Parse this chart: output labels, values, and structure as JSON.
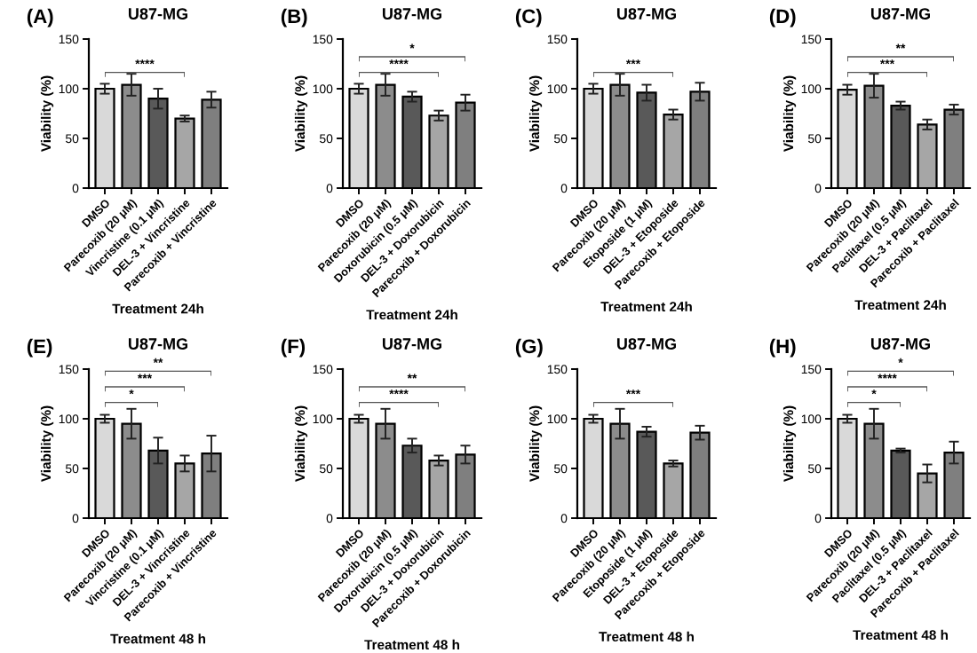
{
  "chart_data": [
    {
      "type": "bar",
      "title": "U87-MG",
      "xlabel": "Treatment 24h",
      "ylabel": "Viability (%)",
      "categories": [
        "DMSO",
        "Parecoxib (20 μM)",
        "Vincristine (0.1 μM)",
        "DEL-3 + Vincristine",
        "Parecoxib + Vincristine"
      ],
      "values": [
        100,
        104,
        90,
        70,
        89
      ],
      "errors": [
        5,
        11,
        10,
        3,
        8
      ],
      "colors": [
        "#d9d9d9",
        "#8c8c8c",
        "#595959",
        "#a6a6a6",
        "#7f7f7f"
      ],
      "ylim": [
        0,
        150
      ],
      "yticks": [
        0,
        50,
        100,
        150
      ],
      "grid": false,
      "annotations": [
        "(A)",
        "****"
      ]
    },
    {
      "type": "bar",
      "title": "U87-MG",
      "xlabel": "Treatment 24h",
      "ylabel": "Viability (%)",
      "categories": [
        "DMSO",
        "Parecoxib (20 μM)",
        "Doxorubicin (0.5 μM)",
        "DEL-3 + Doxorubicin",
        "Parecoxib + Doxorubicin"
      ],
      "values": [
        100,
        104,
        92,
        73,
        86
      ],
      "errors": [
        5,
        11,
        5,
        5,
        8
      ],
      "colors": [
        "#d9d9d9",
        "#8c8c8c",
        "#595959",
        "#a6a6a6",
        "#7f7f7f"
      ],
      "ylim": [
        0,
        150
      ],
      "yticks": [
        0,
        50,
        100,
        150
      ],
      "grid": false,
      "annotations": [
        "(B)",
        "*",
        "****"
      ]
    },
    {
      "type": "bar",
      "title": "U87-MG",
      "xlabel": "Treatment 24h",
      "ylabel": "Viability (%)",
      "categories": [
        "DMSO",
        "Parecoxib (20 μM)",
        "Etoposide (1 μM)",
        "DEL-3 + Etoposide",
        "Parecoxib + Etoposide"
      ],
      "values": [
        100,
        104,
        96,
        74,
        97
      ],
      "errors": [
        5,
        11,
        8,
        5,
        9
      ],
      "colors": [
        "#d9d9d9",
        "#8c8c8c",
        "#595959",
        "#a6a6a6",
        "#7f7f7f"
      ],
      "ylim": [
        0,
        150
      ],
      "yticks": [
        0,
        50,
        100,
        150
      ],
      "grid": false,
      "annotations": [
        "(C)",
        "***"
      ]
    },
    {
      "type": "bar",
      "title": "U87-MG",
      "xlabel": "Treatment 24h",
      "ylabel": "Viability (%)",
      "categories": [
        "DMSO",
        "Parecoxib (20 μM)",
        "Paclitaxel (0.5 μM)",
        "DEL-3 + Paclitaxel",
        "Parecoxib + Paclitaxel"
      ],
      "values": [
        99,
        103,
        83,
        64,
        79
      ],
      "errors": [
        5,
        12,
        4,
        5,
        5
      ],
      "colors": [
        "#d9d9d9",
        "#8c8c8c",
        "#595959",
        "#a6a6a6",
        "#7f7f7f"
      ],
      "ylim": [
        0,
        150
      ],
      "yticks": [
        0,
        50,
        100,
        150
      ],
      "grid": false,
      "annotations": [
        "(D)",
        "**",
        "***"
      ]
    },
    {
      "type": "bar",
      "title": "U87-MG",
      "xlabel": "Treatment 48 h",
      "ylabel": "Viability (%)",
      "categories": [
        "DMSO",
        "Parecoxib (20 μM)",
        "Vincristine (0.1 μM)",
        "DEL-3 + Vincristine",
        "Parecoxib + Vincristine"
      ],
      "values": [
        100,
        95,
        68,
        55,
        65
      ],
      "errors": [
        4,
        15,
        13,
        8,
        18
      ],
      "colors": [
        "#d9d9d9",
        "#8c8c8c",
        "#595959",
        "#a6a6a6",
        "#7f7f7f"
      ],
      "ylim": [
        0,
        150
      ],
      "yticks": [
        0,
        50,
        100,
        150
      ],
      "grid": false,
      "annotations": [
        "(E)",
        "**",
        "***",
        "*"
      ]
    },
    {
      "type": "bar",
      "title": "U87-MG",
      "xlabel": "Treatment 48 h",
      "ylabel": "Viability (%)",
      "categories": [
        "DMSO",
        "Parecoxib (20 μM)",
        "Doxorubicin (0.5 μM)",
        "DEL-3 + Doxorubicin",
        "Parecoxib + Doxorubicin"
      ],
      "values": [
        100,
        95,
        73,
        58,
        64
      ],
      "errors": [
        4,
        15,
        7,
        5,
        9
      ],
      "colors": [
        "#d9d9d9",
        "#8c8c8c",
        "#595959",
        "#a6a6a6",
        "#7f7f7f"
      ],
      "ylim": [
        0,
        150
      ],
      "yticks": [
        0,
        50,
        100,
        150
      ],
      "grid": false,
      "annotations": [
        "(F)",
        "**",
        "****"
      ]
    },
    {
      "type": "bar",
      "title": "U87-MG",
      "xlabel": "Treatment 48 h",
      "ylabel": "Viability (%)",
      "categories": [
        "DMSO",
        "Parecoxib (20 μM)",
        "Etoposide (1 μM)",
        "DEL-3 + Etoposide",
        "Parecoxib + Etoposide"
      ],
      "values": [
        100,
        95,
        87,
        55,
        86
      ],
      "errors": [
        4,
        15,
        5,
        3,
        7
      ],
      "colors": [
        "#d9d9d9",
        "#8c8c8c",
        "#595959",
        "#a6a6a6",
        "#7f7f7f"
      ],
      "ylim": [
        0,
        150
      ],
      "yticks": [
        0,
        50,
        100,
        150
      ],
      "grid": false,
      "annotations": [
        "(G)",
        "***"
      ]
    },
    {
      "type": "bar",
      "title": "U87-MG",
      "xlabel": "Treatment 48 h",
      "ylabel": "Viability (%)",
      "categories": [
        "DMSO",
        "Parecoxib (20 μM)",
        "Paclitaxel (0.5 μM)",
        "DEL-3 + Paclitaxel",
        "Parecoxib + Paclitaxel"
      ],
      "values": [
        100,
        95,
        68,
        45,
        66
      ],
      "errors": [
        4,
        15,
        2,
        9,
        11
      ],
      "colors": [
        "#d9d9d9",
        "#8c8c8c",
        "#595959",
        "#a6a6a6",
        "#7f7f7f"
      ],
      "ylim": [
        0,
        150
      ],
      "yticks": [
        0,
        50,
        100,
        150
      ],
      "grid": false,
      "annotations": [
        "(H)",
        "*",
        "****",
        "*"
      ]
    }
  ]
}
